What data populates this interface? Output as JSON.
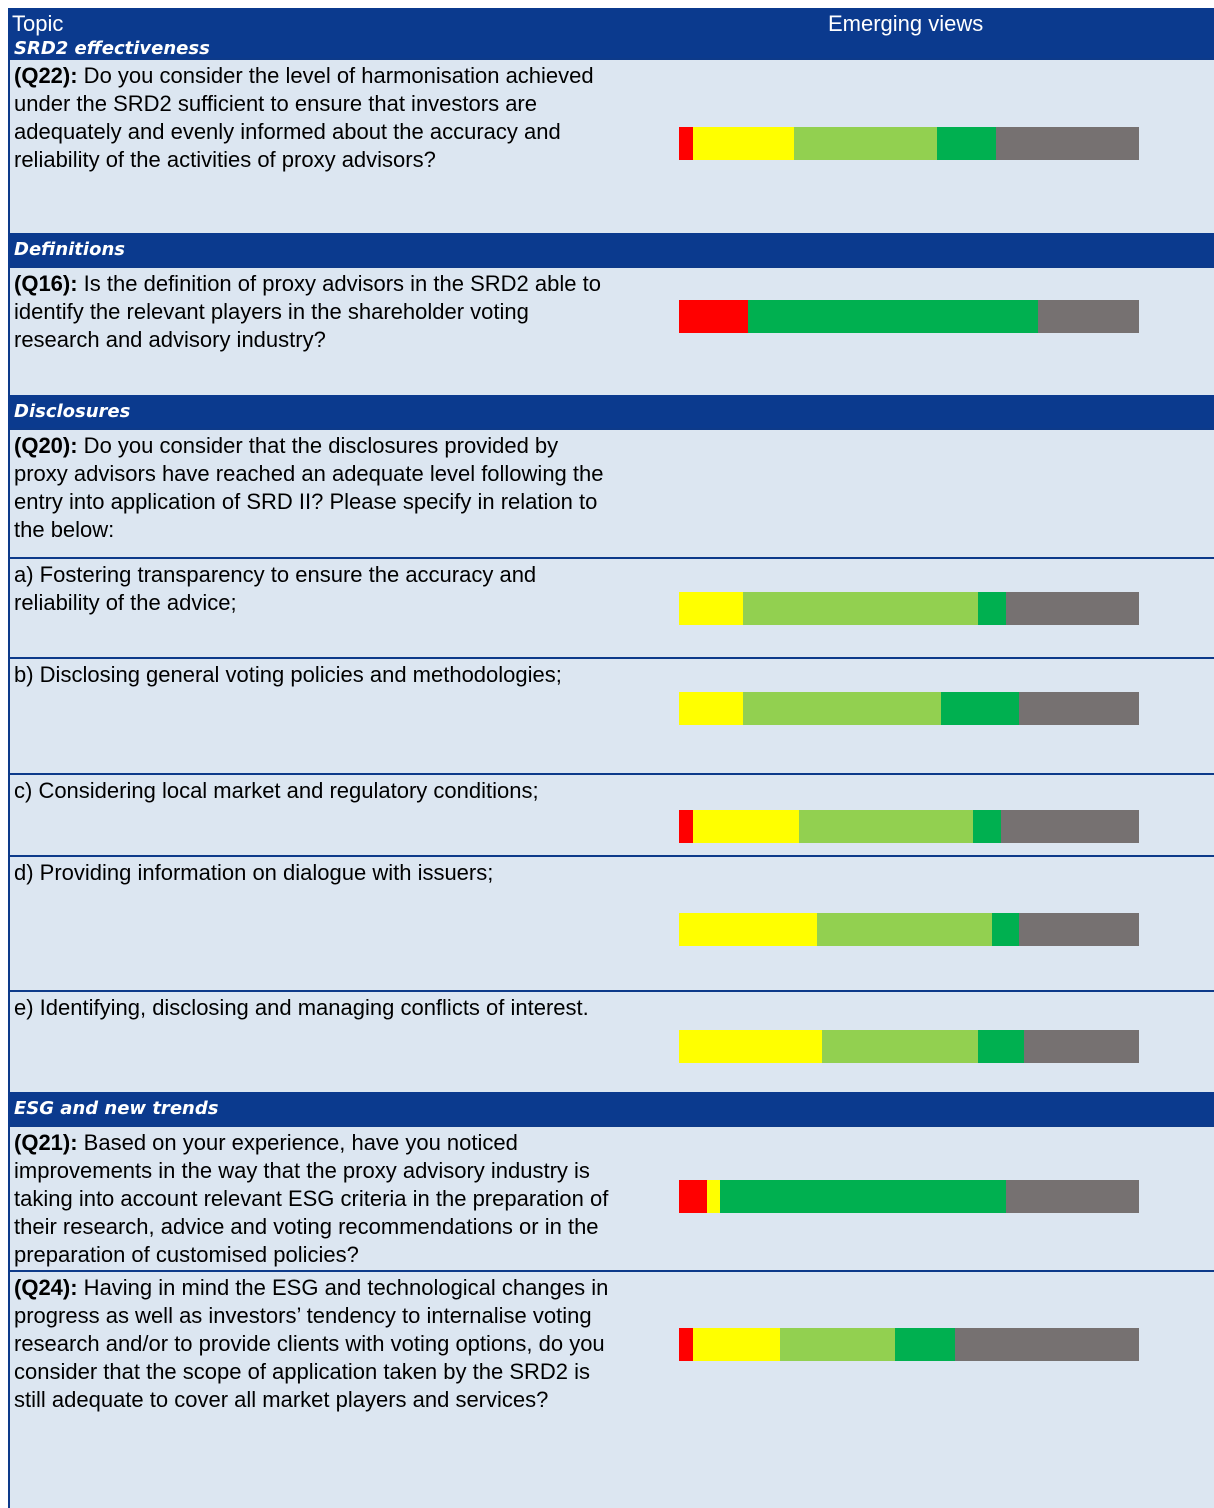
{
  "header": {
    "topic": "Topic",
    "views": "Emerging views"
  },
  "segment_colors": [
    "#ff0000",
    "#ffff00",
    "#92d050",
    "#00b050",
    "#767171"
  ],
  "rows": [
    {
      "kind": "section",
      "title": "SRD2 effectiveness"
    },
    {
      "kind": "question",
      "id": "(Q22):",
      "text": " Do you consider the level of harmonisation achieved under the SRD2 sufficient to ensure that investors are adequately and evenly informed about the accuracy and reliability of the activities of proxy advisors?",
      "values": [
        3,
        22,
        31,
        13,
        31
      ]
    },
    {
      "kind": "section",
      "title": "Definitions"
    },
    {
      "kind": "question",
      "id": "(Q16):",
      "text": " Is the definition of proxy advisors in the SRD2 able to identify the relevant players in the shareholder voting research and advisory industry?",
      "values": [
        15,
        0,
        0,
        63,
        22
      ]
    },
    {
      "kind": "section",
      "title": "Disclosures"
    },
    {
      "kind": "question",
      "id": "(Q20):",
      "text": " Do you consider that the disclosures provided by proxy advisors have reached an adequate level following the entry into application of SRD II? Please specify in relation to the below:"
    },
    {
      "kind": "item",
      "text": "a) Fostering transparency to ensure the accuracy and reliability of the advice;",
      "values": [
        0,
        14,
        51,
        6,
        29
      ]
    },
    {
      "kind": "item",
      "text": "b) Disclosing general voting policies and methodologies;",
      "values": [
        0,
        14,
        43,
        17,
        26
      ]
    },
    {
      "kind": "item",
      "text": "c) Considering local market and regulatory conditions;",
      "values": [
        3,
        23,
        38,
        6,
        30
      ]
    },
    {
      "kind": "item",
      "text": "d) Providing information on dialogue with issuers;",
      "values": [
        0,
        30,
        38,
        6,
        26
      ]
    },
    {
      "kind": "item",
      "text": "e) Identifying, disclosing and managing conflicts of interest.",
      "values": [
        0,
        31,
        34,
        10,
        25
      ]
    },
    {
      "kind": "section",
      "title": "ESG and new trends"
    },
    {
      "kind": "question",
      "id": "(Q21):",
      "text": " Based on your experience, have you noticed improvements in the way that the proxy advisory industry is taking into account relevant ESG criteria in the preparation of their research, advice and voting recommendations or in the preparation of customised policies?",
      "values": [
        6,
        3,
        0,
        62,
        29
      ]
    },
    {
      "kind": "question",
      "id": "(Q24):",
      "text": " Having in mind the ESG and technological changes in progress as well as investors’ tendency to internalise voting research and/or to provide clients with voting options, do you consider that the scope of application taken by the SRD2 is still adequate to cover all market players and services?",
      "values": [
        3,
        19,
        25,
        13,
        40
      ]
    }
  ]
}
